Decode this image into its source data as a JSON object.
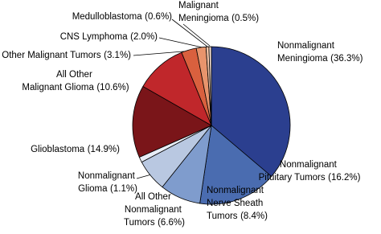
{
  "chart_data": {
    "type": "pie",
    "categories": [
      "Nonmalignant Meningioma",
      "Nonmalignant Pituitary Tumors",
      "Nonmalignant Nerve Sheath Tumors",
      "All Other Nonmalignant Tumors",
      "Nonmalignant Glioma",
      "Glioblastoma",
      "All Other Malignant Glioma",
      "All Other Malignant Tumors",
      "CNS Lymphoma",
      "Medulloblastoma",
      "Malignant Meningioma"
    ],
    "values": [
      36.3,
      16.2,
      8.4,
      6.6,
      1.1,
      14.9,
      10.6,
      3.1,
      2.0,
      0.6,
      0.5
    ],
    "value_labels": [
      "(36.3%)",
      "(16.2%)",
      "(8.4%)",
      "(6.6%)",
      "(1.1%)",
      "(14.9%)",
      "(10.6%)",
      "(3.1%)",
      "(2.0%)",
      "(0.6%)",
      "(0.5%)"
    ],
    "colors": [
      "#2b3f8f",
      "#4a6cb0",
      "#7f9ccd",
      "#b9c8e1",
      "#e8edf6",
      "#7a1519",
      "#c0272b",
      "#d9603e",
      "#e8946c",
      "#f2c4a8",
      "#f8e2d2"
    ]
  }
}
